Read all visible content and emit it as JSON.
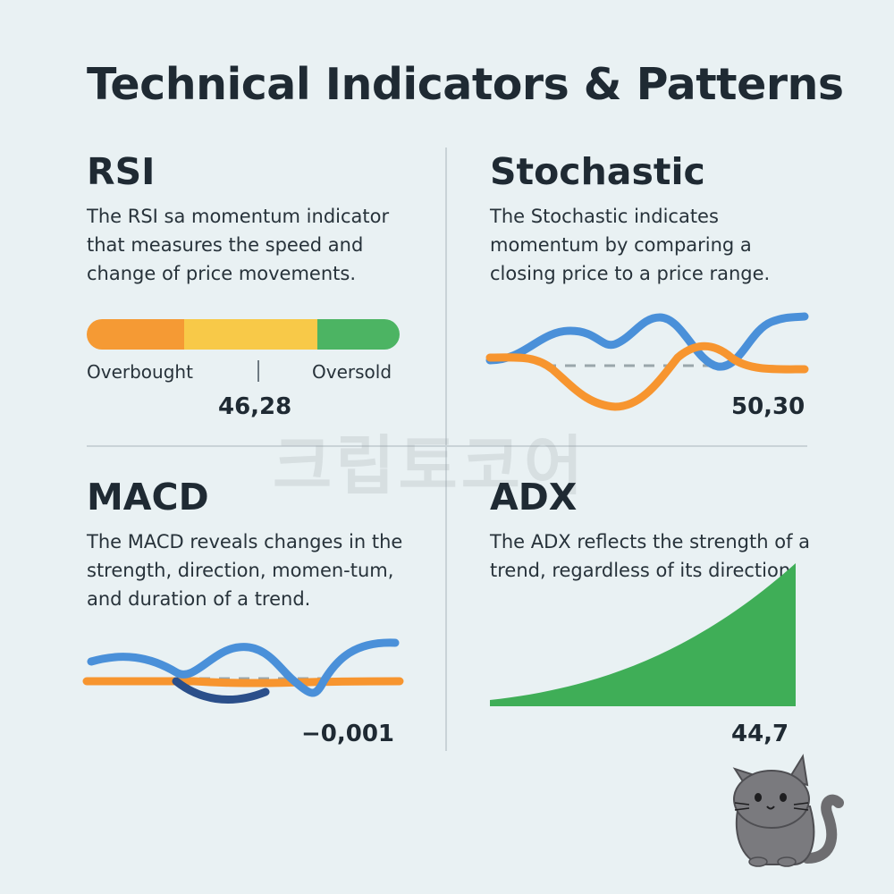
{
  "title": "Technical Indicators & Patterns",
  "watermark": "크립토코어",
  "rsi": {
    "title": "RSI",
    "description": "The RSI sa momentum indicator that measures the speed and change of price movements.",
    "overbought_label": "Overbought",
    "oversold_label": "Oversold",
    "value": "46,28",
    "colors": {
      "orange": "#f59a34",
      "yellow": "#f8c948",
      "green": "#4cb463"
    }
  },
  "stochastic": {
    "title": "Stochastic",
    "description": "The Stochastic indicates momentum by comparing a closing price to a price range.",
    "value": "50,30"
  },
  "macd": {
    "title": "MACD",
    "description": "The MACD reveals changes in the strength, direction, momen-tum, and duration of a trend.",
    "value": "−0,001"
  },
  "adx": {
    "title": "ADX",
    "description": "The ADX reflects the strength of a trend, regardless of its direction.",
    "value": "44,7"
  },
  "colors": {
    "blue": "#4a90d9",
    "orange": "#f7952f",
    "dark_blue": "#2b4f8a",
    "green": "#3fae57",
    "dashed": "#9aa6ab"
  },
  "icons": {
    "mascot": "cat-icon"
  }
}
